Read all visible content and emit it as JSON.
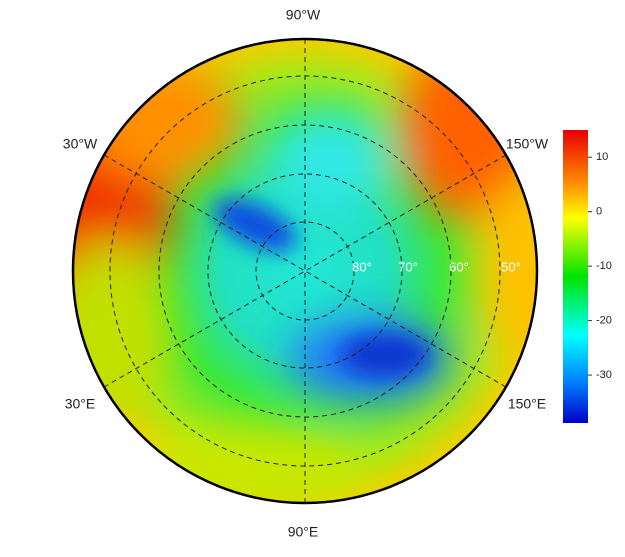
{
  "map": {
    "lon_labels": {
      "top": "90°W",
      "upper_left": "30°W",
      "upper_right": "150°W",
      "lower_left": "30°E",
      "lower_right": "150°E",
      "bottom": "90°E"
    },
    "lat_labels": [
      "80°",
      "70°",
      "60°",
      "50°"
    ],
    "colorbar": {
      "lim": [
        -38.8,
        15
      ],
      "ticks": [
        10,
        0,
        -10,
        -20,
        -30
      ]
    }
  }
}
